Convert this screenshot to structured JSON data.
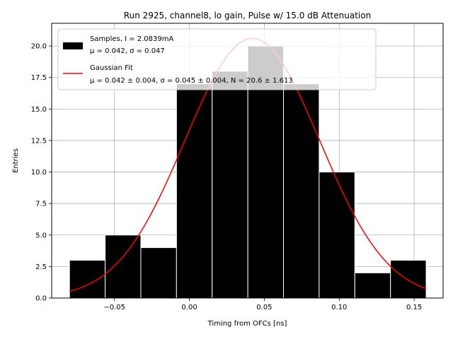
{
  "chart_data": {
    "type": "bar",
    "title": "Run 2925, channel8, lo gain, Pulse w/ 15.0 dB Attenuation",
    "xlabel": "Timing from OFCs [ns]",
    "ylabel": "Entries",
    "xlim": [
      -0.0919,
      0.1693
    ],
    "ylim": [
      0,
      21.8
    ],
    "grid": true,
    "legend_position": "upper-left",
    "xticks": [
      -0.05,
      0.0,
      0.05,
      0.1,
      0.15
    ],
    "xtick_labels": [
      "−0.05",
      "0.00",
      "0.05",
      "0.10",
      "0.15"
    ],
    "yticks": [
      0.0,
      2.5,
      5.0,
      7.5,
      10.0,
      12.5,
      15.0,
      17.5,
      20.0
    ],
    "ytick_labels": [
      "0.0",
      "2.5",
      "5.0",
      "7.5",
      "10.0",
      "12.5",
      "15.0",
      "17.5",
      "20.0"
    ],
    "bins": [
      {
        "x0": -0.08,
        "x1": -0.0562,
        "count": 3
      },
      {
        "x0": -0.0562,
        "x1": -0.0324,
        "count": 5
      },
      {
        "x0": -0.0324,
        "x1": -0.0086,
        "count": 4
      },
      {
        "x0": -0.0086,
        "x1": 0.0152,
        "count": 17
      },
      {
        "x0": 0.0152,
        "x1": 0.039,
        "count": 18
      },
      {
        "x0": 0.039,
        "x1": 0.0628,
        "count": 20
      },
      {
        "x0": 0.0628,
        "x1": 0.0866,
        "count": 17
      },
      {
        "x0": 0.0866,
        "x1": 0.1104,
        "count": 10
      },
      {
        "x0": 0.1104,
        "x1": 0.1342,
        "count": 2
      },
      {
        "x0": 0.1342,
        "x1": 0.158,
        "count": 3
      }
    ],
    "series": [
      {
        "name": "Samples, I = 2.0839mA",
        "kind": "histogram",
        "color": "#000000",
        "edge_color": "#ffffff"
      },
      {
        "name": "Gaussian Fit",
        "kind": "line",
        "color": "#ff0000",
        "mu": 0.042,
        "sigma": 0.045,
        "N": 20.6,
        "x_range": [
          -0.08,
          0.158
        ]
      }
    ],
    "legend": [
      {
        "line1": "Samples, I = 2.0839mA",
        "line2": "μ = 0.042, σ = 0.047",
        "swatch": "patch",
        "color": "#000000"
      },
      {
        "line1": "Gaussian Fit",
        "line2": "μ = 0.042 ± 0.004, σ = 0.045 ± 0.004, N = 20.6 ± 1.613",
        "swatch": "line",
        "color": "#ff0000"
      }
    ]
  }
}
